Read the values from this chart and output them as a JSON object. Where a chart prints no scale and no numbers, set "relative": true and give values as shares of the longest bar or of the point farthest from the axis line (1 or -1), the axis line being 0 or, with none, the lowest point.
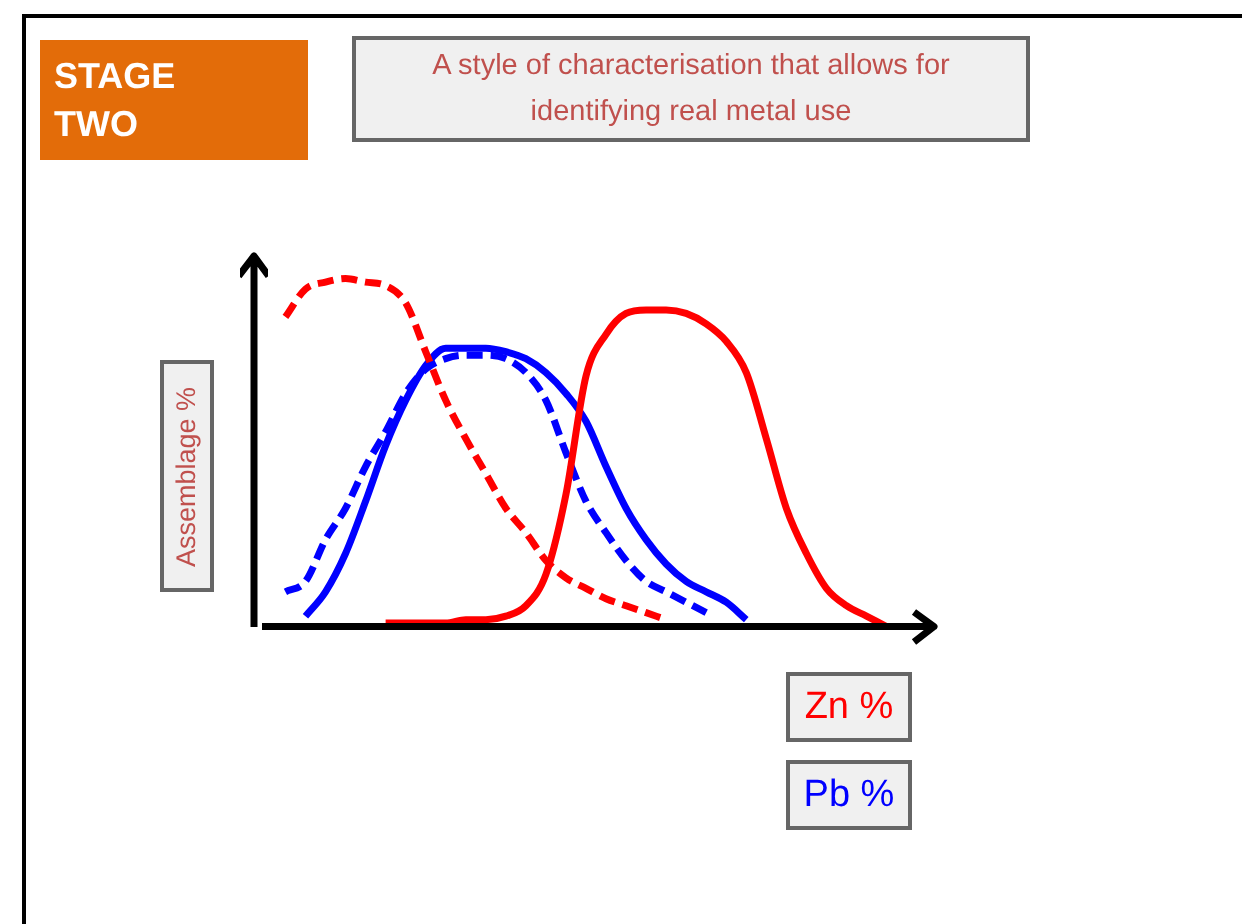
{
  "chart_data": {
    "type": "line",
    "relative": true,
    "title": "STAGE TWO",
    "subtitle": "A style of characterisation that allows for identifying real metal use",
    "ylabel": "Assemblage %",
    "annotations": [
      "Zn %",
      "Pb %"
    ],
    "marker": "none",
    "legend": false,
    "categories": [
      null,
      null,
      null,
      null,
      null,
      null,
      null,
      null,
      null,
      null,
      null,
      null,
      null,
      null,
      null,
      null,
      null,
      null,
      null,
      null,
      null,
      null,
      null,
      null,
      null,
      null,
      null,
      null,
      null,
      null,
      null,
      null,
      null,
      null
    ],
    "series": [
      {
        "color": "#ff0000",
        "line_style": "solid",
        "values": [
          null,
          null,
          null,
          null,
          null,
          null,
          0.01,
          0.01,
          0.01,
          0.01,
          0.02,
          0.02,
          0.03,
          0.06,
          0.15,
          0.38,
          0.72,
          0.84,
          0.9,
          0.91,
          0.91,
          0.9,
          0.87,
          0.82,
          0.73,
          0.54,
          0.34,
          0.21,
          0.11,
          0.06,
          0.03,
          0,
          null,
          null
        ]
      },
      {
        "color": "#ff0000",
        "line_style": "dashed",
        "values": [
          null,
          0.89,
          0.97,
          0.99,
          1,
          0.99,
          0.98,
          0.93,
          0.79,
          0.65,
          0.54,
          0.44,
          0.34,
          0.27,
          0.19,
          0.14,
          0.11,
          0.08,
          0.06,
          0.04,
          0.02,
          null,
          null,
          null,
          null,
          null,
          null,
          null,
          null,
          null,
          null,
          null,
          null,
          null
        ]
      },
      {
        "color": "#0000ff",
        "line_style": "solid",
        "values": [
          null,
          null,
          0.03,
          0.1,
          0.21,
          0.36,
          0.52,
          0.65,
          0.75,
          0.8,
          0.8,
          0.8,
          0.79,
          0.77,
          0.73,
          0.67,
          0.59,
          0.46,
          0.34,
          0.25,
          0.18,
          0.13,
          0.1,
          0.07,
          0.02,
          null,
          null,
          null,
          null,
          null,
          null,
          null,
          null,
          null
        ]
      },
      {
        "color": "#0000ff",
        "line_style": "dashed",
        "values": [
          null,
          0.1,
          0.13,
          0.25,
          0.34,
          0.46,
          0.56,
          0.67,
          0.74,
          0.77,
          0.78,
          0.78,
          0.77,
          0.73,
          0.65,
          0.5,
          0.36,
          0.27,
          0.19,
          0.13,
          0.1,
          0.07,
          0.04,
          null,
          null,
          null,
          null,
          null,
          null,
          null,
          null,
          null,
          null,
          null
        ]
      }
    ]
  }
}
